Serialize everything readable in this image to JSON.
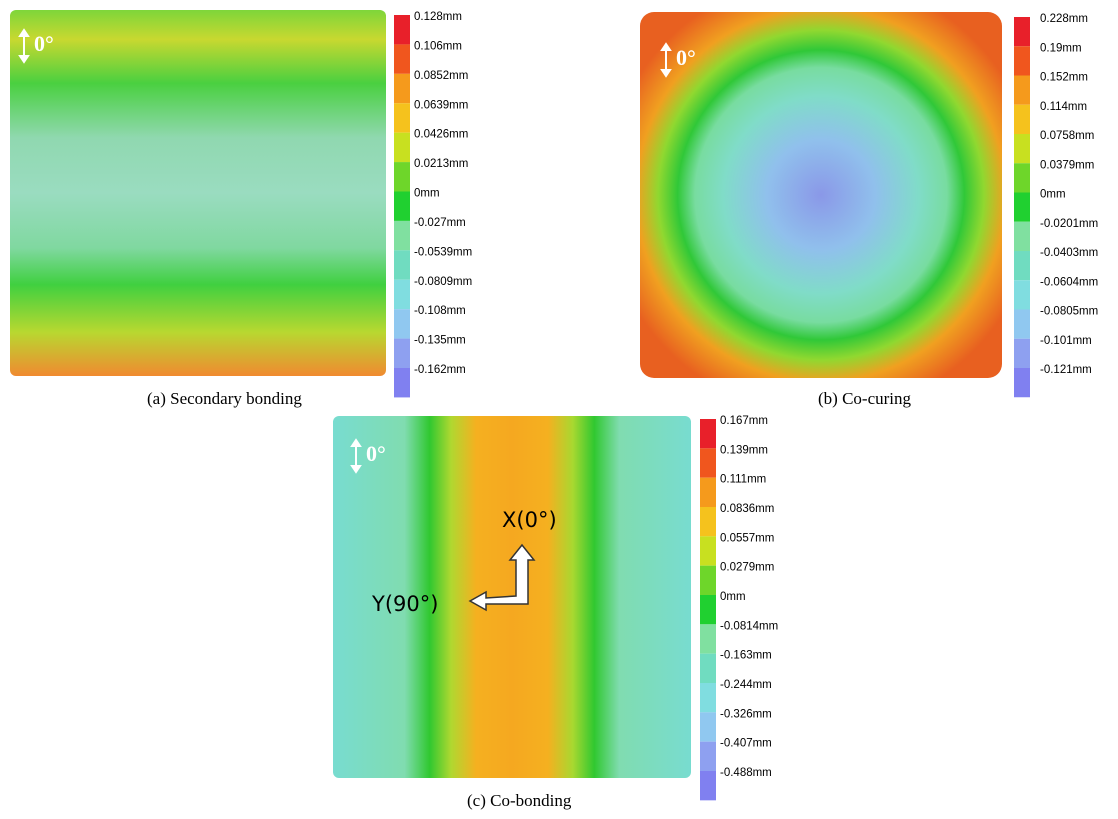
{
  "panels": [
    {
      "caption": "(a) Secondary bonding",
      "orientation_label": "0°",
      "legend": [
        "0.128mm",
        "0.106mm",
        "0.0852mm",
        "0.0639mm",
        "0.0426mm",
        "0.0213mm",
        "0mm",
        "-0.027mm",
        "-0.0539mm",
        "-0.0809mm",
        "-0.108mm",
        "-0.135mm",
        "-0.162mm"
      ]
    },
    {
      "caption": "(b) Co-curing",
      "orientation_label": "0°",
      "legend": [
        "0.228mm",
        "0.19mm",
        "0.152mm",
        "0.114mm",
        "0.0758mm",
        "0.0379mm",
        "0mm",
        "-0.0201mm",
        "-0.0403mm",
        "-0.0604mm",
        "-0.0805mm",
        "-0.101mm",
        "-0.121mm"
      ]
    },
    {
      "caption": "(c) Co-bonding",
      "orientation_label": "0°",
      "legend": [
        "0.167mm",
        "0.139mm",
        "0.111mm",
        "0.0836mm",
        "0.0557mm",
        "0.0279mm",
        "0mm",
        "-0.0814mm",
        "-0.163mm",
        "-0.244mm",
        "-0.326mm",
        "-0.407mm",
        "-0.488mm"
      ],
      "axis_labels": {
        "x": "X(0°)",
        "y": "Y(90°)"
      }
    }
  ]
}
